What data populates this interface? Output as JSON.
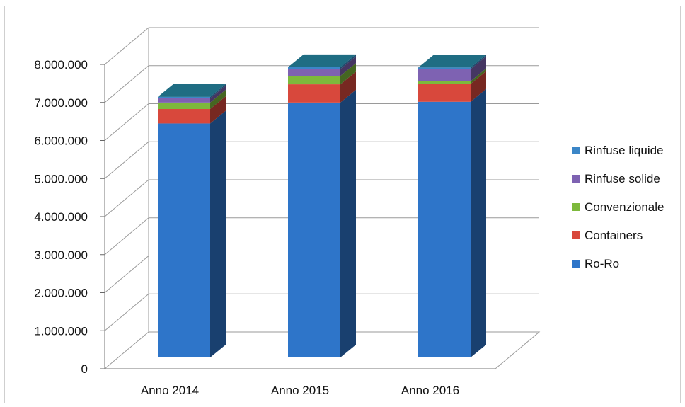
{
  "chart_data": {
    "type": "bar",
    "stacked": true,
    "three_d": true,
    "categories": [
      "Anno 2014",
      "Anno 2015",
      "Anno 2016"
    ],
    "series": [
      {
        "name": "Ro-Ro",
        "color": "#2E75C9",
        "values": [
          6150000,
          6700000,
          6720000
        ]
      },
      {
        "name": "Containers",
        "color": "#D8483C",
        "values": [
          380000,
          480000,
          470000
        ]
      },
      {
        "name": "Convenzionale",
        "color": "#7DB93C",
        "values": [
          170000,
          220000,
          70000
        ]
      },
      {
        "name": "Rinfuse solide",
        "color": "#7E62B2",
        "values": [
          110000,
          180000,
          320000
        ]
      },
      {
        "name": "Rinfuse liquide",
        "color": "#3B86C7",
        "values": [
          40000,
          50000,
          40000
        ]
      }
    ],
    "legend_order": [
      "Rinfuse liquide",
      "Rinfuse solide",
      "Convenzionale",
      "Containers",
      "Ro-Ro"
    ],
    "yticks": [
      "0",
      "1.000.000",
      "2.000.000",
      "3.000.000",
      "4.000.000",
      "5.000.000",
      "6.000.000",
      "7.000.000",
      "8.000.000"
    ],
    "ylim": [
      0,
      8000000
    ],
    "grid": true,
    "legend_position": "right"
  }
}
